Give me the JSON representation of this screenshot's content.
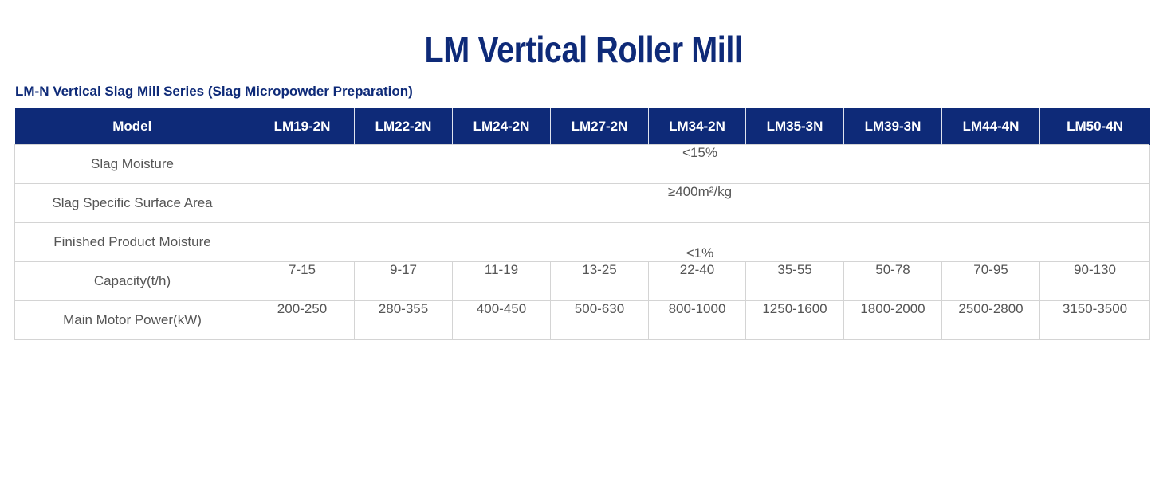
{
  "page": {
    "title": "LM Vertical Roller Mill",
    "series_title": "LM-N Vertical Slag Mill Series (Slag Micropowder Preparation)"
  },
  "table": {
    "header_label": "Model",
    "models": [
      "LM19-2N",
      "LM22-2N",
      "LM24-2N",
      "LM27-2N",
      "LM34-2N",
      "LM35-3N",
      "LM39-3N",
      "LM44-4N",
      "LM50-4N"
    ],
    "rows": {
      "slag_moisture": {
        "label": "Slag Moisture",
        "value": "<15%"
      },
      "slag_surface_area": {
        "label": "Slag Specific Surface Area",
        "value": "≥400m²/kg"
      },
      "finished_moisture": {
        "label": "Finished Product Moisture",
        "value": "<1%"
      },
      "capacity": {
        "label": "Capacity(t/h)",
        "values": [
          "7-15",
          "9-17",
          "11-19",
          "13-25",
          "22-40",
          "35-55",
          "50-78",
          "70-95",
          "90-130"
        ]
      },
      "motor_power": {
        "label": "Main Motor Power(kW)",
        "values": [
          "200-250",
          "280-355",
          "400-450",
          "500-630",
          "800-1000",
          "1250-1600",
          "1800-2000",
          "2500-2800",
          "3150-3500"
        ]
      }
    }
  },
  "colors": {
    "brand_navy": "#0e2a78",
    "text_gray": "#555555",
    "border_gray": "#d4d4d4"
  }
}
